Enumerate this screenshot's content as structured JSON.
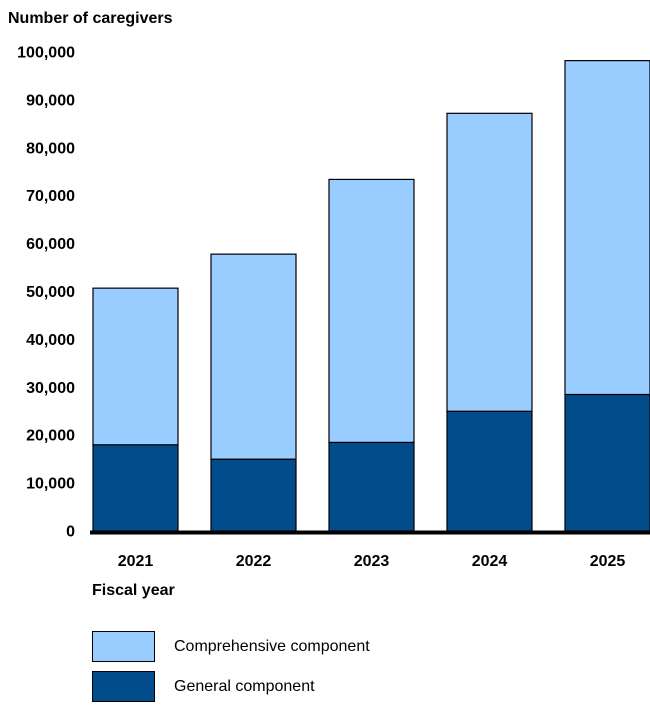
{
  "chart_data": {
    "type": "bar",
    "stacked": true,
    "categories": [
      "2021",
      "2022",
      "2023",
      "2024",
      "2025"
    ],
    "series": [
      {
        "name": "General component",
        "color": "#034C8C",
        "values": [
          18000,
          15000,
          18500,
          25000,
          28500
        ]
      },
      {
        "name": "Comprehensive component",
        "color": "#99CCFF",
        "values": [
          32700,
          42800,
          54900,
          62200,
          69700
        ]
      }
    ],
    "ylabel": "Number of caregivers",
    "xlabel": "Fiscal year",
    "ylim": [
      0,
      100000
    ],
    "yticks": [
      "0",
      "10,000",
      "20,000",
      "30,000",
      "40,000",
      "50,000",
      "60,000",
      "70,000",
      "80,000",
      "90,000",
      "100,000"
    ],
    "ytick_values": [
      0,
      10000,
      20000,
      30000,
      40000,
      50000,
      60000,
      70000,
      80000,
      90000,
      100000
    ],
    "grid": false,
    "legend_position": "bottom-left",
    "legend": [
      {
        "label": "Comprehensive component",
        "color": "#99CCFF"
      },
      {
        "label": "General component",
        "color": "#034C8C"
      }
    ]
  }
}
